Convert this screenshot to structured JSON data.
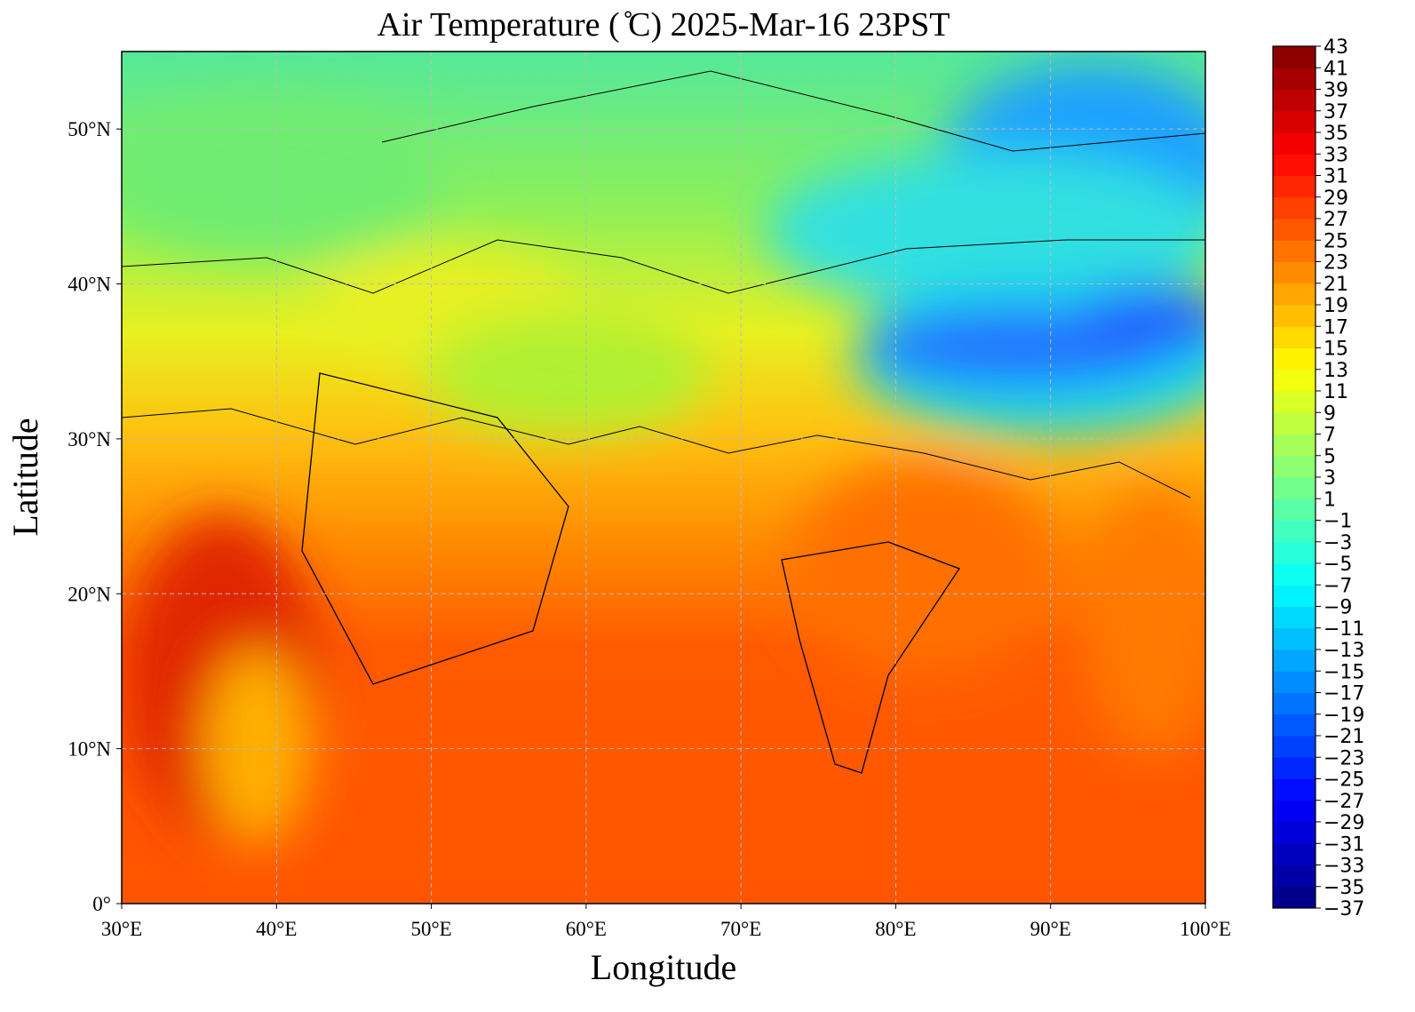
{
  "chart_data": {
    "type": "map",
    "title": "Air Temperature ( ̊C)  2025-Mar-16 23PST",
    "x_label": "Longitude",
    "y_label": "Latitude",
    "xlim": [
      30,
      100
    ],
    "ylim": [
      0,
      55
    ],
    "xticks": [
      {
        "value": 30,
        "label": "30°E"
      },
      {
        "value": 40,
        "label": "40°E"
      },
      {
        "value": 50,
        "label": "50°E"
      },
      {
        "value": 60,
        "label": "60°E"
      },
      {
        "value": 70,
        "label": "70°E"
      },
      {
        "value": 80,
        "label": "80°E"
      },
      {
        "value": 90,
        "label": "90°E"
      },
      {
        "value": 100,
        "label": "100°E"
      }
    ],
    "yticks": [
      {
        "value": 0,
        "label": "0°"
      },
      {
        "value": 10,
        "label": "10°N"
      },
      {
        "value": 20,
        "label": "20°N"
      },
      {
        "value": 30,
        "label": "30°N"
      },
      {
        "value": 40,
        "label": "40°N"
      },
      {
        "value": 50,
        "label": "50°N"
      }
    ],
    "grid": true,
    "colorbar": {
      "range": [
        -37,
        43
      ],
      "ticks": [
        43,
        41,
        39,
        37,
        35,
        33,
        31,
        29,
        27,
        25,
        23,
        21,
        19,
        17,
        15,
        13,
        11,
        9,
        7,
        5,
        3,
        1,
        {
          "value": -1,
          "label": "−1"
        },
        {
          "value": -3,
          "label": "−3"
        },
        {
          "value": -5,
          "label": "−5"
        },
        {
          "value": -7,
          "label": "−7"
        },
        {
          "value": -9,
          "label": "−9"
        },
        {
          "value": -11,
          "label": "−11"
        },
        {
          "value": -13,
          "label": "−13"
        },
        {
          "value": -15,
          "label": "−15"
        },
        {
          "value": -17,
          "label": "−17"
        },
        {
          "value": -19,
          "label": "−19"
        },
        {
          "value": -21,
          "label": "−21"
        },
        {
          "value": -23,
          "label": "−23"
        },
        {
          "value": -25,
          "label": "−25"
        },
        {
          "value": -27,
          "label": "−27"
        },
        {
          "value": -29,
          "label": "−29"
        },
        {
          "value": -31,
          "label": "−31"
        },
        {
          "value": -33,
          "label": "−33"
        },
        {
          "value": -35,
          "label": "−35"
        },
        {
          "value": -37,
          "label": "−37"
        }
      ]
    }
  }
}
